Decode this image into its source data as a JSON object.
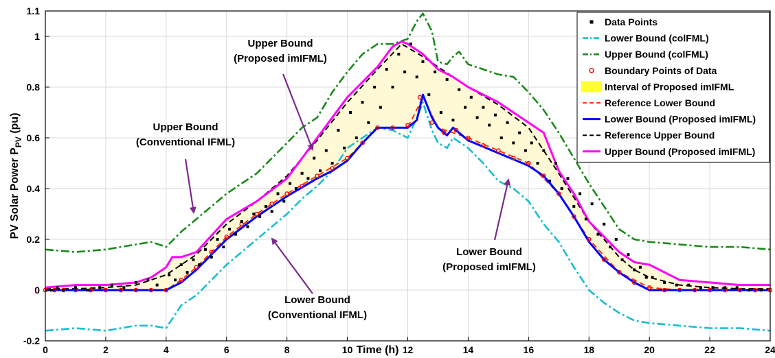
{
  "chart_data": {
    "type": "line",
    "xlabel": "Time (h)",
    "ylabel": "PV Solar Power P",
    "ylabel_sub": "PV",
    "ylabel_unit": "(pu)",
    "xlim": [
      0,
      24
    ],
    "ylim": [
      -0.2,
      1.1
    ],
    "xticks": [
      0,
      2,
      4,
      6,
      8,
      10,
      12,
      14,
      16,
      18,
      20,
      22,
      24
    ],
    "yticks": [
      -0.2,
      0,
      0.2,
      0.4,
      0.6,
      0.8,
      1,
      1.1
    ],
    "ytick_labels": [
      "-0.2",
      "0",
      "0.2",
      "0.4",
      "0.6",
      "0.8",
      "1",
      "1.1"
    ],
    "grid": true,
    "legend_position": "top-right",
    "colors": {
      "data": "#000000",
      "lower_col": "#17BECF",
      "upper_col": "#1A8A1A",
      "boundary": "#FF0000",
      "interval": "#FFF9D6",
      "interval_legend": "#FFFF33",
      "ref_lower": "#FF3300",
      "lower_prop": "#0000FF",
      "ref_upper": "#000000",
      "upper_prop": "#FF00FF",
      "arrow": "#7B2A8C"
    },
    "legend": [
      {
        "key": "data",
        "label": "Data Points"
      },
      {
        "key": "lower_col",
        "label": "Lower Bound (colFML)"
      },
      {
        "key": "upper_col",
        "label": "Upper Bound (colFML)"
      },
      {
        "key": "boundary",
        "label": "Boundary Points of Data"
      },
      {
        "key": "interval",
        "label": "Interval of Proposed imIFML"
      },
      {
        "key": "ref_lower",
        "label": "Reference Lower Bound"
      },
      {
        "key": "lower_prop",
        "label": "Lower Bound (Proposed imIFML)"
      },
      {
        "key": "ref_upper",
        "label": "Reference Upper Bound"
      },
      {
        "key": "upper_prop",
        "label": "Upper Bound (Proposed imIFML)"
      }
    ],
    "annotations": [
      {
        "lines": [
          "Upper Bound",
          "(Proposed imIFML)"
        ]
      },
      {
        "lines": [
          "Upper Bound",
          "(Conventional IFML)"
        ]
      },
      {
        "lines": [
          "Lower Bound",
          "(Proposed imIFML)"
        ]
      },
      {
        "lines": [
          "Lower Bound",
          "(Conventional IFML)"
        ]
      }
    ],
    "series": [
      {
        "name": "Upper Bound (colFML)",
        "key": "upper_col",
        "x": [
          0,
          1,
          2,
          3,
          3.5,
          4,
          4.5,
          5,
          6,
          7,
          8,
          8.5,
          9,
          9.5,
          10,
          10.5,
          11,
          11.5,
          12,
          12.3,
          12.5,
          12.8,
          13,
          13.3,
          13.5,
          13.7,
          14,
          14.5,
          15,
          15.5,
          16,
          16.5,
          17,
          17.5,
          18,
          18.5,
          19,
          19.5,
          20,
          21,
          22,
          23,
          24
        ],
        "y": [
          0.16,
          0.15,
          0.16,
          0.18,
          0.19,
          0.17,
          0.23,
          0.28,
          0.38,
          0.46,
          0.58,
          0.64,
          0.68,
          0.78,
          0.86,
          0.93,
          0.97,
          0.97,
          0.99,
          1.06,
          1.09,
          1.02,
          0.9,
          0.89,
          0.92,
          0.94,
          0.89,
          0.87,
          0.85,
          0.84,
          0.78,
          0.71,
          0.62,
          0.52,
          0.42,
          0.33,
          0.24,
          0.2,
          0.19,
          0.18,
          0.17,
          0.17,
          0.16
        ]
      },
      {
        "name": "Lower Bound (colFML)",
        "key": "lower_col",
        "x": [
          0,
          1,
          2,
          3,
          3.5,
          4,
          4.5,
          5,
          6,
          7,
          8,
          8.5,
          9,
          9.5,
          10,
          10.5,
          11,
          11.5,
          12,
          12.3,
          12.5,
          12.8,
          13,
          13.3,
          13.5,
          14,
          14.5,
          15,
          15.5,
          16,
          16.5,
          17,
          17.5,
          18,
          18.5,
          19,
          19.5,
          20,
          21,
          22,
          23,
          24
        ],
        "y": [
          -0.16,
          -0.15,
          -0.16,
          -0.14,
          -0.14,
          -0.15,
          -0.06,
          -0.02,
          0.1,
          0.2,
          0.3,
          0.36,
          0.41,
          0.47,
          0.56,
          0.6,
          0.64,
          0.63,
          0.6,
          0.68,
          0.74,
          0.63,
          0.58,
          0.56,
          0.6,
          0.56,
          0.5,
          0.43,
          0.4,
          0.35,
          0.26,
          0.19,
          0.09,
          0.0,
          -0.05,
          -0.09,
          -0.12,
          -0.13,
          -0.14,
          -0.15,
          -0.15,
          -0.16
        ]
      },
      {
        "name": "Upper Bound (Proposed imIFML)",
        "key": "upper_prop",
        "x": [
          0,
          1,
          2,
          3,
          3.5,
          4,
          4.2,
          4.5,
          5,
          6,
          7,
          8,
          9,
          10,
          11,
          11.5,
          11.8,
          12,
          12.5,
          13,
          13.5,
          14,
          15,
          16,
          16.5,
          17,
          17.5,
          18,
          19,
          19.5,
          20,
          21,
          22,
          23,
          24
        ],
        "y": [
          0.01,
          0.02,
          0.02,
          0.03,
          0.05,
          0.09,
          0.13,
          0.13,
          0.15,
          0.28,
          0.35,
          0.44,
          0.6,
          0.76,
          0.88,
          0.96,
          0.98,
          0.97,
          0.93,
          0.87,
          0.84,
          0.8,
          0.74,
          0.66,
          0.62,
          0.47,
          0.38,
          0.27,
          0.15,
          0.11,
          0.1,
          0.04,
          0.03,
          0.02,
          0.02
        ]
      },
      {
        "name": "Lower Bound (Proposed imIFML)",
        "key": "lower_prop",
        "x": [
          0,
          1,
          2,
          3,
          4,
          4.5,
          5,
          6,
          7,
          8,
          9,
          9.5,
          10,
          10.5,
          11,
          11.5,
          12,
          12.3,
          12.5,
          12.8,
          13,
          13.3,
          13.5,
          14,
          15,
          16,
          16.5,
          17,
          17.5,
          18,
          18.5,
          19,
          19.5,
          20,
          20.5,
          21,
          22,
          23,
          24
        ],
        "y": [
          0,
          0,
          0,
          0,
          0,
          0.03,
          0.08,
          0.2,
          0.29,
          0.37,
          0.44,
          0.47,
          0.51,
          0.58,
          0.64,
          0.64,
          0.64,
          0.67,
          0.77,
          0.68,
          0.64,
          0.61,
          0.64,
          0.59,
          0.54,
          0.49,
          0.45,
          0.38,
          0.29,
          0.19,
          0.12,
          0.07,
          0.03,
          0.0,
          0.0,
          0.0,
          0.0,
          0.0,
          0.0
        ]
      },
      {
        "name": "Reference Upper Bound",
        "key": "ref_upper",
        "x": [
          0,
          1,
          2,
          3,
          4,
          5,
          6,
          7,
          8,
          9,
          10,
          11,
          11.8,
          12.5,
          13.5,
          14,
          15,
          16,
          17,
          18,
          19,
          19.5,
          20,
          21,
          22,
          23,
          24
        ],
        "y": [
          0.005,
          0.005,
          0.01,
          0.02,
          0.06,
          0.14,
          0.26,
          0.35,
          0.45,
          0.59,
          0.74,
          0.87,
          0.97,
          0.92,
          0.84,
          0.8,
          0.73,
          0.64,
          0.46,
          0.27,
          0.13,
          0.08,
          0.05,
          0.02,
          0.01,
          0.005,
          0.005
        ]
      },
      {
        "name": "Reference Lower Bound",
        "key": "ref_lower",
        "x": [
          0,
          1,
          2,
          3,
          4,
          4.5,
          5,
          6,
          7,
          8,
          9,
          10,
          11,
          12,
          12.5,
          13,
          14,
          15,
          16,
          17,
          18,
          19,
          20,
          21,
          22,
          23,
          24
        ],
        "y": [
          0,
          0,
          0,
          0,
          0,
          0.04,
          0.09,
          0.21,
          0.3,
          0.38,
          0.45,
          0.52,
          0.64,
          0.64,
          0.76,
          0.64,
          0.6,
          0.55,
          0.5,
          0.38,
          0.2,
          0.07,
          0.01,
          0.0,
          0.0,
          0.0,
          0.0
        ]
      }
    ],
    "data_points": {
      "name": "Data Points",
      "key": "data",
      "x": [
        0.2,
        0.4,
        0.6,
        1.0,
        1.4,
        1.8,
        2.2,
        2.6,
        3.0,
        3.4,
        3.7,
        4.1,
        4.3,
        4.5,
        4.7,
        4.9,
        5.1,
        5.3,
        5.5,
        5.7,
        5.9,
        6.1,
        6.3,
        6.5,
        6.7,
        6.9,
        7.1,
        7.3,
        7.5,
        7.7,
        7.9,
        8.1,
        8.3,
        8.5,
        8.7,
        8.9,
        9.1,
        9.3,
        9.5,
        9.7,
        9.9,
        10.1,
        10.3,
        10.5,
        10.7,
        10.9,
        11.1,
        11.3,
        11.5,
        11.7,
        11.9,
        12.1,
        12.3,
        12.5,
        12.7,
        12.9,
        13.1,
        13.3,
        13.5,
        13.7,
        13.9,
        14.1,
        14.3,
        14.5,
        14.7,
        14.9,
        15.1,
        15.3,
        15.5,
        15.7,
        15.9,
        16.1,
        16.3,
        16.5,
        16.7,
        16.9,
        17.1,
        17.3,
        17.5,
        17.7,
        17.9,
        18.1,
        18.3,
        18.5,
        18.7,
        18.9,
        19.1,
        19.3,
        19.5,
        19.7,
        19.9,
        20.1,
        20.5,
        20.9,
        21.3,
        21.7,
        22.1,
        22.5,
        22.9,
        23.3,
        23.7
      ],
      "y": [
        0.0,
        0.01,
        0.0,
        0.01,
        0.0,
        0.01,
        0.02,
        0.01,
        0.03,
        0.04,
        0.02,
        0.06,
        0.04,
        0.1,
        0.07,
        0.12,
        0.1,
        0.16,
        0.13,
        0.2,
        0.17,
        0.24,
        0.22,
        0.27,
        0.25,
        0.3,
        0.29,
        0.33,
        0.31,
        0.38,
        0.35,
        0.42,
        0.4,
        0.46,
        0.44,
        0.52,
        0.47,
        0.55,
        0.5,
        0.63,
        0.56,
        0.7,
        0.6,
        0.74,
        0.66,
        0.8,
        0.72,
        0.87,
        0.8,
        0.93,
        0.86,
        0.97,
        0.84,
        0.9,
        0.77,
        0.86,
        0.7,
        0.83,
        0.67,
        0.79,
        0.72,
        0.76,
        0.68,
        0.72,
        0.65,
        0.69,
        0.6,
        0.66,
        0.58,
        0.62,
        0.55,
        0.58,
        0.5,
        0.55,
        0.43,
        0.5,
        0.4,
        0.44,
        0.33,
        0.38,
        0.28,
        0.34,
        0.22,
        0.26,
        0.17,
        0.2,
        0.12,
        0.14,
        0.08,
        0.09,
        0.05,
        0.05,
        0.03,
        0.02,
        0.02,
        0.01,
        0.01,
        0.01,
        0.01,
        0.0,
        0.0
      ]
    },
    "boundary_points": {
      "name": "Boundary Points of Data",
      "key": "boundary",
      "x": [
        0.0,
        0.3,
        0.6,
        1.0,
        1.5,
        2.0,
        2.5,
        3.0,
        3.5,
        4.0,
        4.5,
        5.0,
        5.5,
        6.0,
        6.5,
        7.0,
        7.5,
        8.0,
        8.5,
        9.0,
        9.5,
        10.0,
        10.5,
        11.0,
        11.5,
        12.0,
        12.4,
        12.8,
        13.2,
        13.6,
        14.0,
        14.5,
        15.0,
        15.5,
        16.0,
        16.5,
        17.0,
        17.5,
        18.0,
        18.5,
        19.0,
        19.5,
        20.0,
        20.5,
        21.0,
        21.5,
        22.0,
        22.5,
        23.0,
        23.5,
        24.0
      ],
      "y": [
        0.0,
        0.0,
        0.0,
        0.0,
        0.0,
        0.0,
        0.0,
        0.0,
        0.0,
        0.0,
        0.04,
        0.09,
        0.15,
        0.21,
        0.26,
        0.3,
        0.34,
        0.38,
        0.41,
        0.45,
        0.48,
        0.52,
        0.58,
        0.64,
        0.64,
        0.65,
        0.76,
        0.66,
        0.62,
        0.63,
        0.6,
        0.57,
        0.55,
        0.52,
        0.5,
        0.45,
        0.38,
        0.29,
        0.2,
        0.12,
        0.07,
        0.03,
        0.01,
        0.0,
        0.0,
        0.0,
        0.0,
        0.0,
        0.0,
        0.0,
        0.0
      ]
    }
  }
}
